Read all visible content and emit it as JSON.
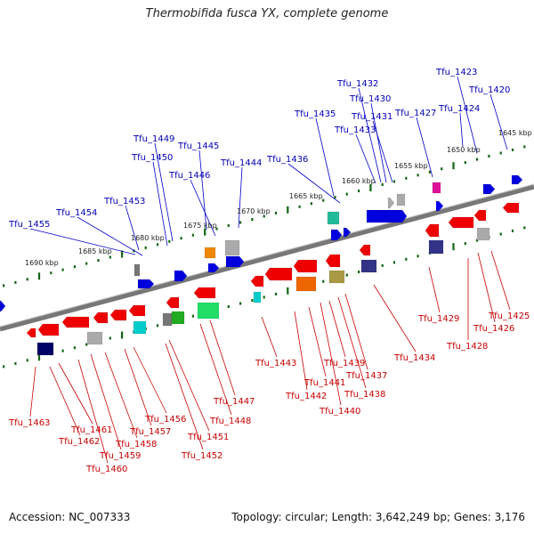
{
  "title": "Thermobifida fusca YX, complete genome",
  "footer": {
    "accession": "Accession: NC_007333",
    "info": "Topology: circular; Length: 3,642,249 bp; Genes: 3,176"
  },
  "colors": {
    "forward_label": "#0000b4",
    "reverse_label": "#c80000",
    "tick": "#116611",
    "backbone": "#777777"
  },
  "kbp_labels": [
    "1645 kbp",
    "1650 kbp",
    "1655 kbp",
    "1660 kbp",
    "1665 kbp",
    "1670 kbp",
    "1675 kbp",
    "1680 kbp",
    "1685 kbp",
    "1690 kbp"
  ],
  "forward_genes": [
    "Tfu_1423",
    "Tfu_1420",
    "Tfu_1424",
    "Tfu_1427",
    "Tfu_1432",
    "Tfu_1430",
    "Tfu_1431",
    "Tfu_1433",
    "Tfu_1435",
    "Tfu_1436",
    "Tfu_1444",
    "Tfu_1445",
    "Tfu_1446",
    "Tfu_1449",
    "Tfu_1450",
    "Tfu_1453",
    "Tfu_1454",
    "Tfu_1455"
  ],
  "reverse_genes": [
    "Tfu_1425",
    "Tfu_1426",
    "Tfu_1428",
    "Tfu_1429",
    "Tfu_1434",
    "Tfu_1437",
    "Tfu_1438",
    "Tfu_1439",
    "Tfu_1440",
    "Tfu_1441",
    "Tfu_1442",
    "Tfu_1443",
    "Tfu_1447",
    "Tfu_1448",
    "Tfu_1451",
    "Tfu_1452",
    "Tfu_1456",
    "Tfu_1457",
    "Tfu_1458",
    "Tfu_1459",
    "Tfu_1460",
    "Tfu_1461",
    "Tfu_1462",
    "Tfu_1463"
  ]
}
